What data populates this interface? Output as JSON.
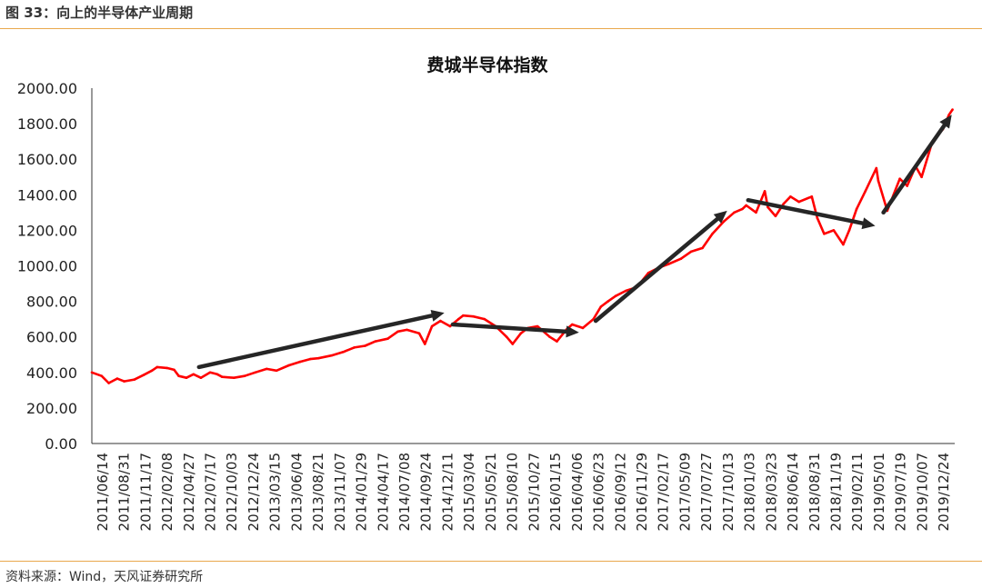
{
  "figure": {
    "header": "图 33：向上的半导体产业周期",
    "source": "资料来源：Wind，天风证券研究所"
  },
  "chart_data": {
    "type": "line",
    "title": "费城半导体指数",
    "xlabel": "",
    "ylabel": "",
    "ylim": [
      0,
      2000
    ],
    "yticks": [
      "0.00",
      "200.00",
      "400.00",
      "600.00",
      "800.00",
      "1000.00",
      "1200.00",
      "1400.00",
      "1600.00",
      "1800.00",
      "2000.00"
    ],
    "xticks": [
      "2011/06/14",
      "2011/08/31",
      "2011/11/17",
      "2012/02/08",
      "2012/04/27",
      "2012/07/17",
      "2012/10/03",
      "2012/12/24",
      "2013/03/15",
      "2013/06/04",
      "2013/08/21",
      "2013/11/07",
      "2014/01/29",
      "2014/04/17",
      "2014/07/08",
      "2014/09/24",
      "2014/12/11",
      "2015/03/04",
      "2015/05/21",
      "2015/08/10",
      "2015/10/27",
      "2016/01/15",
      "2016/04/06",
      "2016/06/23",
      "2016/09/12",
      "2016/11/29",
      "2017/02/17",
      "2017/05/09",
      "2017/07/27",
      "2017/10/13",
      "2018/01/03",
      "2018/03/23",
      "2018/06/14",
      "2018/08/31",
      "2018/11/19",
      "2019/02/11",
      "2019/05/01",
      "2019/07/19",
      "2019/10/07",
      "2019/12/24"
    ],
    "grid": false,
    "legend": "none",
    "series_color": "#ff0000",
    "arrow_color": "#262626",
    "series": [
      {
        "x": [
          "2011/06/14",
          "2011/07/20",
          "2011/08/15",
          "2011/09/15",
          "2011/10/10",
          "2011/11/17",
          "2011/12/20",
          "2012/01/20",
          "2012/02/08",
          "2012/03/15",
          "2012/04/10",
          "2012/04/27",
          "2012/05/25",
          "2012/06/20",
          "2012/07/17",
          "2012/08/20",
          "2012/09/15",
          "2012/10/03",
          "2012/11/15",
          "2012/12/24",
          "2013/02/01",
          "2013/03/15",
          "2013/04/20",
          "2013/06/04",
          "2013/07/15",
          "2013/08/21",
          "2013/09/20",
          "2013/11/07",
          "2013/12/20",
          "2014/01/29",
          "2014/03/10",
          "2014/04/17",
          "2014/06/01",
          "2014/07/08",
          "2014/08/10",
          "2014/09/24",
          "2014/10/15",
          "2014/11/10",
          "2014/12/11",
          "2015/01/15",
          "2015/02/15",
          "2015/03/04",
          "2015/04/10",
          "2015/05/21",
          "2015/07/01",
          "2015/08/10",
          "2015/09/01",
          "2015/10/01",
          "2015/10/27",
          "2015/12/01",
          "2016/01/15",
          "2016/02/10",
          "2016/03/15",
          "2016/04/06",
          "2016/05/15",
          "2016/06/23",
          "2016/07/20",
          "2016/08/15",
          "2016/09/12",
          "2016/10/20",
          "2016/11/29",
          "2017/01/10",
          "2017/02/17",
          "2017/03/25",
          "2017/05/09",
          "2017/06/15",
          "2017/07/27",
          "2017/09/01",
          "2017/10/13",
          "2017/11/20",
          "2017/12/20",
          "2018/01/03",
          "2018/02/08",
          "2018/03/12",
          "2018/03/23",
          "2018/04/20",
          "2018/05/20",
          "2018/06/14",
          "2018/07/15",
          "2018/08/31",
          "2018/09/20",
          "2018/10/15",
          "2018/11/19",
          "2018/12/24",
          "2019/01/15",
          "2019/02/11",
          "2019/03/15",
          "2019/04/24",
          "2019/05/01",
          "2019/06/03",
          "2019/07/19",
          "2019/08/15",
          "2019/09/15",
          "2019/10/07",
          "2019/11/15",
          "2019/12/24",
          "2020/01/15",
          "2020/01/28"
        ],
        "values": [
          400,
          380,
          340,
          365,
          350,
          360,
          385,
          410,
          430,
          425,
          415,
          380,
          370,
          390,
          370,
          400,
          390,
          375,
          370,
          380,
          400,
          420,
          410,
          440,
          460,
          475,
          480,
          495,
          515,
          540,
          550,
          575,
          590,
          630,
          640,
          620,
          560,
          660,
          690,
          660,
          700,
          720,
          715,
          700,
          660,
          600,
          560,
          620,
          650,
          660,
          600,
          575,
          640,
          670,
          650,
          700,
          770,
          800,
          830,
          860,
          880,
          960,
          990,
          1010,
          1040,
          1080,
          1100,
          1180,
          1250,
          1300,
          1320,
          1340,
          1300,
          1420,
          1330,
          1280,
          1350,
          1390,
          1360,
          1390,
          1270,
          1180,
          1200,
          1120,
          1200,
          1320,
          1420,
          1550,
          1480,
          1310,
          1490,
          1450,
          1560,
          1500,
          1700,
          1770,
          1850,
          1880
        ]
      }
    ],
    "arrows": [
      {
        "from": {
          "x": "2012/07/10",
          "y": 430
        },
        "to": {
          "x": "2014/12/25",
          "y": 735
        }
      },
      {
        "from": {
          "x": "2015/01/25",
          "y": 670
        },
        "to": {
          "x": "2016/05/01",
          "y": 625
        }
      },
      {
        "from": {
          "x": "2016/07/01",
          "y": 690
        },
        "to": {
          "x": "2017/10/25",
          "y": 1310
        }
      },
      {
        "from": {
          "x": "2018/01/10",
          "y": 1370
        },
        "to": {
          "x": "2019/04/20",
          "y": 1225
        }
      },
      {
        "from": {
          "x": "2019/05/20",
          "y": 1300
        },
        "to": {
          "x": "2020/01/25",
          "y": 1850
        }
      }
    ]
  }
}
